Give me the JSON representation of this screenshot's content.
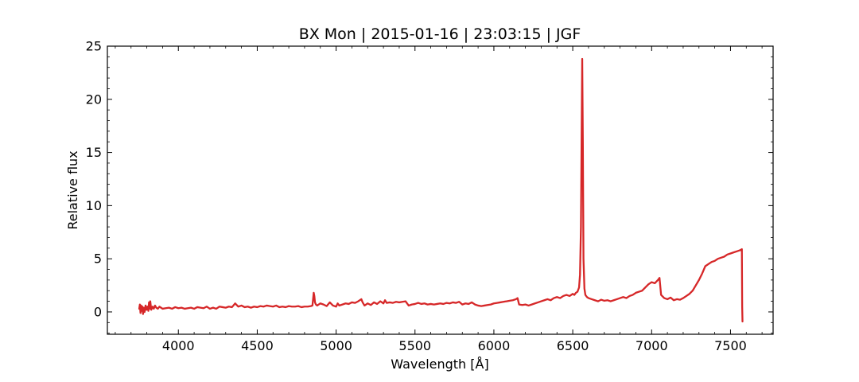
{
  "chart_data": {
    "type": "line",
    "title": "BX Mon | 2015-01-16 | 23:03:15 | JGF",
    "xlabel": "Wavelength [Å]",
    "ylabel": "Relative flux",
    "xlim": [
      3550,
      7770
    ],
    "ylim": [
      -2.1,
      25
    ],
    "xticks": [
      4000,
      4500,
      5000,
      5500,
      6000,
      6500,
      7000,
      7500
    ],
    "yticks": [
      0,
      5,
      10,
      15,
      20,
      25
    ],
    "x_minor_step": 100,
    "y_minor_step": 1,
    "grid": false,
    "ticks_direction": "in",
    "color": "#d62728",
    "series": [
      {
        "x": [
          3752,
          3756,
          3760,
          3764,
          3768,
          3772,
          3776,
          3780,
          3786,
          3792,
          3798,
          3804,
          3810,
          3814,
          3818,
          3822,
          3828,
          3836,
          3844,
          3852,
          3860,
          3870,
          3880,
          3890,
          3900,
          3920,
          3940,
          3960,
          3980,
          4000,
          4020,
          4040,
          4060,
          4080,
          4100,
          4120,
          4140,
          4160,
          4180,
          4200,
          4220,
          4240,
          4260,
          4280,
          4300,
          4320,
          4340,
          4360,
          4380,
          4400,
          4420,
          4440,
          4460,
          4480,
          4500,
          4520,
          4540,
          4560,
          4580,
          4600,
          4620,
          4640,
          4660,
          4680,
          4700,
          4720,
          4740,
          4760,
          4780,
          4800,
          4820,
          4840,
          4850,
          4858,
          4862,
          4866,
          4872,
          4880,
          4890,
          4900,
          4920,
          4940,
          4960,
          4980,
          5000,
          5010,
          5020,
          5040,
          5060,
          5080,
          5100,
          5120,
          5140,
          5160,
          5168,
          5180,
          5200,
          5220,
          5240,
          5260,
          5280,
          5300,
          5310,
          5320,
          5340,
          5360,
          5380,
          5400,
          5420,
          5440,
          5460,
          5480,
          5500,
          5520,
          5540,
          5560,
          5580,
          5600,
          5620,
          5640,
          5660,
          5680,
          5700,
          5720,
          5740,
          5760,
          5780,
          5800,
          5820,
          5840,
          5860,
          5880,
          5900,
          5920,
          5940,
          5960,
          5980,
          6000,
          6020,
          6040,
          6060,
          6080,
          6100,
          6120,
          6140,
          6150,
          6160,
          6180,
          6200,
          6220,
          6240,
          6260,
          6280,
          6300,
          6320,
          6340,
          6360,
          6380,
          6400,
          6420,
          6440,
          6460,
          6480,
          6500,
          6510,
          6520,
          6530,
          6540,
          6546,
          6552,
          6556,
          6560,
          6564,
          6568,
          6574,
          6580,
          6590,
          6600,
          6620,
          6640,
          6660,
          6680,
          6700,
          6720,
          6740,
          6760,
          6780,
          6800,
          6820,
          6840,
          6860,
          6880,
          6900,
          6920,
          6940,
          6960,
          6980,
          7000,
          7020,
          7040,
          7050,
          7060,
          7080,
          7100,
          7120,
          7140,
          7160,
          7180,
          7200,
          7220,
          7240,
          7260,
          7280,
          7300,
          7320,
          7340,
          7360,
          7380,
          7400,
          7420,
          7440,
          7460,
          7480,
          7500,
          7520,
          7540,
          7560,
          7572,
          7574,
          7576
        ],
        "y": [
          0.3,
          0.7,
          -0.1,
          0.6,
          0.1,
          0.5,
          -0.2,
          0.4,
          0.0,
          0.6,
          0.2,
          0.5,
          0.1,
          0.9,
          0.3,
          1.0,
          0.2,
          0.5,
          0.3,
          0.6,
          0.4,
          0.3,
          0.5,
          0.4,
          0.3,
          0.35,
          0.4,
          0.3,
          0.45,
          0.35,
          0.4,
          0.3,
          0.35,
          0.4,
          0.3,
          0.45,
          0.4,
          0.35,
          0.5,
          0.3,
          0.4,
          0.3,
          0.5,
          0.45,
          0.4,
          0.5,
          0.45,
          0.8,
          0.5,
          0.6,
          0.45,
          0.5,
          0.4,
          0.5,
          0.45,
          0.55,
          0.5,
          0.6,
          0.55,
          0.5,
          0.6,
          0.45,
          0.5,
          0.45,
          0.55,
          0.5,
          0.5,
          0.55,
          0.45,
          0.5,
          0.5,
          0.55,
          0.6,
          1.8,
          1.5,
          0.9,
          0.7,
          0.6,
          0.7,
          0.8,
          0.7,
          0.55,
          0.9,
          0.6,
          0.5,
          0.8,
          0.6,
          0.7,
          0.8,
          0.75,
          0.9,
          0.85,
          1.0,
          1.2,
          0.9,
          0.6,
          0.8,
          0.65,
          0.9,
          0.75,
          1.0,
          0.8,
          1.1,
          0.85,
          0.9,
          0.85,
          0.95,
          0.9,
          0.95,
          1.0,
          0.6,
          0.7,
          0.75,
          0.85,
          0.75,
          0.8,
          0.7,
          0.75,
          0.7,
          0.75,
          0.8,
          0.75,
          0.85,
          0.8,
          0.9,
          0.85,
          0.95,
          0.7,
          0.8,
          0.75,
          0.9,
          0.7,
          0.6,
          0.55,
          0.6,
          0.65,
          0.7,
          0.8,
          0.85,
          0.9,
          0.95,
          1.0,
          1.05,
          1.1,
          1.2,
          1.3,
          0.7,
          0.65,
          0.7,
          0.6,
          0.7,
          0.8,
          0.9,
          1.0,
          1.1,
          1.2,
          1.1,
          1.3,
          1.4,
          1.3,
          1.5,
          1.6,
          1.5,
          1.7,
          1.6,
          1.8,
          1.9,
          2.3,
          3.5,
          8.0,
          16.0,
          23.8,
          16.0,
          5.0,
          2.2,
          1.6,
          1.4,
          1.3,
          1.2,
          1.1,
          1.0,
          1.15,
          1.05,
          1.1,
          1.0,
          1.1,
          1.2,
          1.3,
          1.4,
          1.3,
          1.5,
          1.6,
          1.8,
          1.9,
          2.0,
          2.3,
          2.6,
          2.8,
          2.7,
          3.0,
          3.2,
          1.6,
          1.3,
          1.2,
          1.35,
          1.1,
          1.2,
          1.15,
          1.3,
          1.5,
          1.7,
          2.0,
          2.5,
          3.0,
          3.6,
          4.3,
          4.5,
          4.7,
          4.8,
          5.0,
          5.1,
          5.2,
          5.4,
          5.5,
          5.6,
          5.7,
          5.8,
          5.9,
          0.5,
          -0.9
        ]
      }
    ]
  }
}
